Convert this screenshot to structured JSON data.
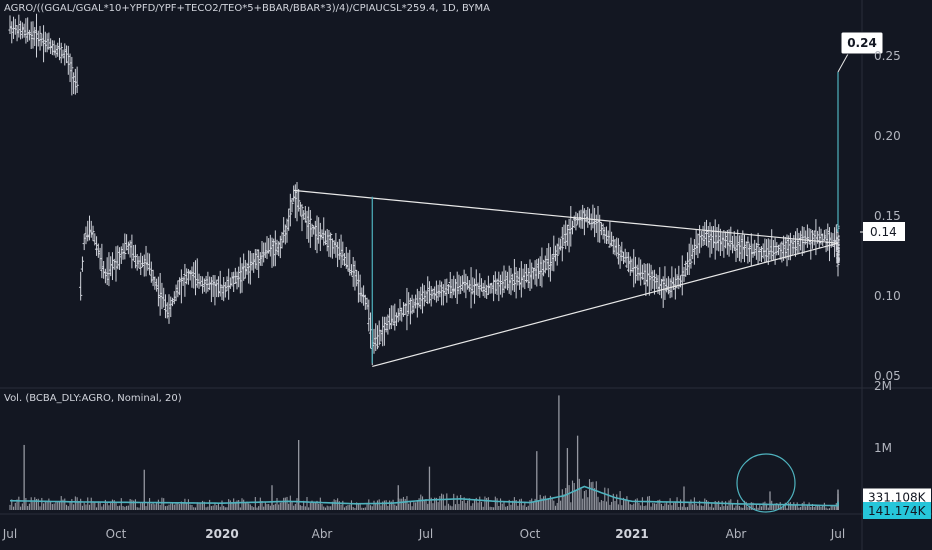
{
  "header": {
    "symbol_title": "AGRO/((GGAL/GGAL*10+YPFD/YPF+TECO2/TEO*5+BBAR/BBAR*3)/4)/CPIAUCSL*259.4, 1D, BYMA"
  },
  "volume_panel": {
    "title": "Vol. (BCBA_DLY:AGRO, Nominal, 20)"
  },
  "colors": {
    "background": "#131722",
    "bar": "#d1d4dc",
    "volume_bar": "#9598a1",
    "accent": "#4fb3bf",
    "trendline": "#e8e8e8",
    "last_price_label_bg": "#ffffff",
    "ma_label_bg": "#26c6da"
  },
  "chart_data": [
    {
      "type": "line",
      "title": "AGRO/((GGAL/GGAL*10+YPFD/YPF+TECO2/TEO*5+BBAR/BBAR*3)/4)/CPIAUCSL*259.4, 1D, BYMA",
      "x_tick_labels": [
        "Jul",
        "Oct",
        "2020",
        "Abr",
        "Jul",
        "Oct",
        "2021",
        "Abr",
        "Jul"
      ],
      "y_tick_labels": [
        "0.25",
        "0.20",
        "0.15",
        "0.10",
        "0.05"
      ],
      "ylim": [
        0.045,
        0.275
      ],
      "price_points": [
        [
          0.0,
          0.268
        ],
        [
          0.8,
          0.262
        ],
        [
          1.6,
          0.25
        ],
        [
          1.8,
          0.236
        ],
        [
          1.9,
          0.232
        ],
        [
          1.95,
          0.088
        ],
        [
          2.1,
          0.135
        ],
        [
          2.3,
          0.142
        ],
        [
          2.5,
          0.128
        ],
        [
          2.7,
          0.112
        ],
        [
          3.0,
          0.122
        ],
        [
          3.3,
          0.132
        ],
        [
          3.6,
          0.122
        ],
        [
          3.9,
          0.12
        ],
        [
          4.2,
          0.104
        ],
        [
          4.5,
          0.09
        ],
        [
          4.8,
          0.108
        ],
        [
          5.1,
          0.113
        ],
        [
          5.5,
          0.108
        ],
        [
          6.0,
          0.104
        ],
        [
          6.5,
          0.112
        ],
        [
          7.0,
          0.122
        ],
        [
          7.4,
          0.13
        ],
        [
          7.7,
          0.13
        ],
        [
          8.0,
          0.146
        ],
        [
          8.15,
          0.163
        ],
        [
          8.4,
          0.152
        ],
        [
          8.8,
          0.14
        ],
        [
          9.2,
          0.135
        ],
        [
          9.6,
          0.125
        ],
        [
          9.9,
          0.115
        ],
        [
          10.1,
          0.105
        ],
        [
          10.3,
          0.095
        ],
        [
          10.45,
          0.068
        ],
        [
          10.6,
          0.072
        ],
        [
          10.9,
          0.083
        ],
        [
          11.4,
          0.092
        ],
        [
          12.0,
          0.1
        ],
        [
          12.6,
          0.104
        ],
        [
          13.2,
          0.107
        ],
        [
          13.8,
          0.104
        ],
        [
          14.4,
          0.11
        ],
        [
          15.0,
          0.113
        ],
        [
          15.6,
          0.121
        ],
        [
          16.0,
          0.135
        ],
        [
          16.3,
          0.146
        ],
        [
          16.6,
          0.15
        ],
        [
          17.0,
          0.145
        ],
        [
          17.3,
          0.137
        ],
        [
          17.6,
          0.128
        ],
        [
          18.0,
          0.118
        ],
        [
          18.4,
          0.112
        ],
        [
          18.8,
          0.108
        ],
        [
          19.1,
          0.105
        ],
        [
          19.4,
          0.11
        ],
        [
          19.7,
          0.125
        ],
        [
          20.0,
          0.137
        ],
        [
          20.4,
          0.137
        ],
        [
          20.8,
          0.133
        ],
        [
          21.3,
          0.13
        ],
        [
          21.8,
          0.127
        ],
        [
          22.4,
          0.13
        ],
        [
          23.0,
          0.135
        ],
        [
          23.6,
          0.137
        ],
        [
          24.2,
          0.132
        ],
        [
          24.8,
          0.128
        ],
        [
          25.4,
          0.121
        ],
        [
          25.8,
          0.124
        ],
        [
          26.2,
          0.124
        ],
        [
          26.5,
          0.137
        ],
        [
          26.7,
          0.145
        ]
      ],
      "trendlines": [
        {
          "from": [
            8.15,
            0.166
          ],
          "to": [
            30.0,
            0.133
          ]
        },
        {
          "from": [
            10.45,
            0.056
          ],
          "to": [
            30.0,
            0.133
          ]
        }
      ],
      "annotations": [
        {
          "type": "measure",
          "from_y": 0.058,
          "to_y": 0.162,
          "x": 10.45
        },
        {
          "type": "measure",
          "from_y": 0.14,
          "to_y": 0.24,
          "x": 27.3,
          "label": "0.24"
        }
      ],
      "last_price_label": "0.14",
      "grid": false
    },
    {
      "type": "bar",
      "title": "Vol. (BCBA_DLY:AGRO, Nominal, 20)",
      "y_tick_labels": [
        "2M",
        "1M"
      ],
      "ylim": [
        0,
        2000000
      ],
      "current_volume_label": "331.108K",
      "ma_label": "141.174K",
      "volume_shape": [
        [
          0.0,
          150000
        ],
        [
          1.0,
          140000
        ],
        [
          2.0,
          130000
        ],
        [
          4.0,
          120000
        ],
        [
          6.0,
          110000
        ],
        [
          8.0,
          140000
        ],
        [
          9.0,
          120000
        ],
        [
          10.0,
          100000
        ],
        [
          11.0,
          110000
        ],
        [
          12.0,
          160000
        ],
        [
          13.0,
          180000
        ],
        [
          14.0,
          140000
        ],
        [
          15.0,
          120000
        ],
        [
          16.0,
          230000
        ],
        [
          16.6,
          380000
        ],
        [
          17.0,
          300000
        ],
        [
          17.5,
          200000
        ],
        [
          18.0,
          140000
        ],
        [
          19.0,
          130000
        ],
        [
          20.0,
          120000
        ],
        [
          21.0,
          100000
        ],
        [
          22.0,
          90000
        ],
        [
          23.0,
          80000
        ],
        [
          24.0,
          70000
        ],
        [
          25.0,
          60000
        ],
        [
          26.0,
          80000
        ],
        [
          26.7,
          141174
        ]
      ],
      "spikes": [
        [
          0.4,
          1050000
        ],
        [
          8.3,
          1130000
        ],
        [
          15.85,
          1850000
        ],
        [
          15.2,
          950000
        ],
        [
          16.4,
          1200000
        ],
        [
          16.1,
          1000000
        ],
        [
          12.1,
          700000
        ],
        [
          3.8,
          650000
        ],
        [
          7.5,
          400000
        ],
        [
          11.2,
          400000
        ],
        [
          19.5,
          380000
        ],
        [
          22.0,
          300000
        ],
        [
          24.8,
          320000
        ],
        [
          26.2,
          260000
        ],
        [
          26.7,
          331108
        ]
      ]
    }
  ]
}
